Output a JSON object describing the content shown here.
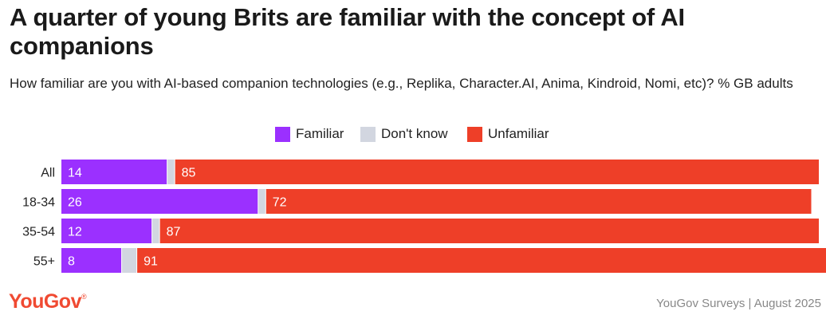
{
  "header": {
    "title": "A quarter of young Brits are familiar with the concept of AI companions",
    "subtitle": "How familiar are you with AI-based companion technologies (e.g., Replika, Character.AI, Anima, Kindroid, Nomi, etc)? % GB adults"
  },
  "legend": [
    {
      "label": "Familiar",
      "color": "#9b30ff"
    },
    {
      "label": "Don't know",
      "color": "#d2d6e0"
    },
    {
      "label": "Unfamiliar",
      "color": "#ee3f28"
    }
  ],
  "chart_data": {
    "type": "bar",
    "orientation": "horizontal",
    "stacked": true,
    "categories": [
      "All",
      "18-34",
      "35-54",
      "55+"
    ],
    "series": [
      {
        "name": "Familiar",
        "values": [
          14,
          26,
          12,
          8
        ],
        "color": "#9b30ff",
        "labeled": true
      },
      {
        "name": "Don't know",
        "values": [
          1,
          1,
          1,
          2
        ],
        "color": "#d2d6e0",
        "labeled": false
      },
      {
        "name": "Unfamiliar",
        "values": [
          85,
          72,
          87,
          91
        ],
        "color": "#ee3f28",
        "labeled": true
      }
    ],
    "xlim": [
      0,
      100
    ],
    "title": "A quarter of young Brits are familiar with the concept of AI companions",
    "legend_position": "top-center"
  },
  "footer": {
    "logo_text": "YouGov",
    "logo_mark": "®",
    "source": "YouGov Surveys | August 2025"
  }
}
